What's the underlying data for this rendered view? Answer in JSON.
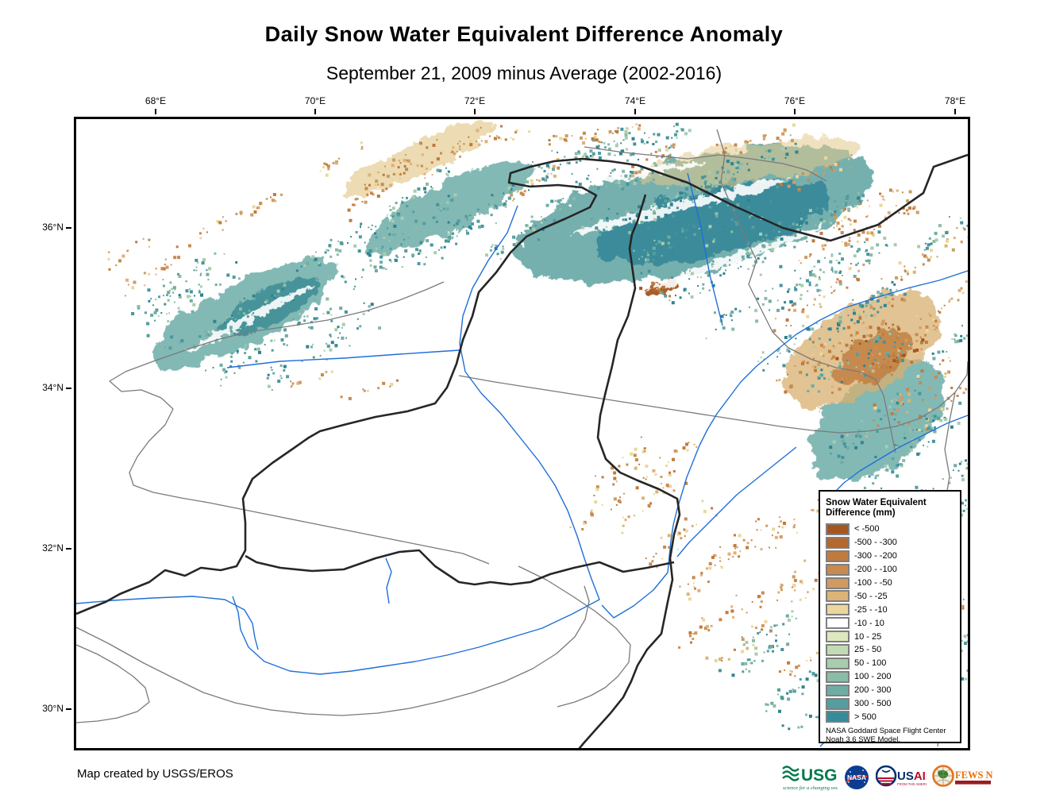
{
  "title": "Daily Snow Water Equivalent Difference Anomaly",
  "subtitle": "September 21, 2009 minus Average (2002-2016)",
  "map": {
    "x_tick_labels": [
      "68°E",
      "70°E",
      "72°E",
      "74°E",
      "76°E",
      "78°E"
    ],
    "y_tick_labels": [
      "36°N",
      "34°N",
      "32°N",
      "30°N"
    ]
  },
  "legend": {
    "title_line1": "Snow Water Equivalent",
    "title_line2": "Difference (mm)",
    "entries": [
      {
        "label": "< -500",
        "color": "#A5551E"
      },
      {
        "label": "-500 - -300",
        "color": "#B4682B"
      },
      {
        "label": "-300 - -200",
        "color": "#C07B3C"
      },
      {
        "label": "-200 - -100",
        "color": "#C88A4E"
      },
      {
        "label": "-100 - -50",
        "color": "#D19A62"
      },
      {
        "label": "-50 - -25",
        "color": "#DDB377"
      },
      {
        "label": "-25 - -10",
        "color": "#EBD79B"
      },
      {
        "label": "-10 - 10",
        "color": "#FFFFFF"
      },
      {
        "label": "10 - 25",
        "color": "#DCE9BE"
      },
      {
        "label": "25 - 50",
        "color": "#C2DBB4"
      },
      {
        "label": "50 - 100",
        "color": "#A8CDAC"
      },
      {
        "label": "100 - 200",
        "color": "#8BBCA7"
      },
      {
        "label": "200 - 300",
        "color": "#6FACA4"
      },
      {
        "label": "300 - 500",
        "color": "#569DA0"
      },
      {
        "label": "> 500",
        "color": "#348C9B"
      }
    ],
    "footnote_line1": "NASA Goddard Space Flight Center",
    "footnote_line2": "Noah 3.6 SWE Model."
  },
  "credit": "Map created by USGS/EROS",
  "logos": {
    "usgs": {
      "name": "USGS",
      "tagline": "science for a changing world",
      "color": "#00794C"
    },
    "nasa": {
      "name": "NASA",
      "color": "#0B3D91"
    },
    "usaid": {
      "name_us": "US",
      "name_aid": "AID",
      "tagline": "FROM THE AMERICAN PEOPLE",
      "blue": "#002F6C",
      "red": "#BA0C2F"
    },
    "fewsnet": {
      "name": "FEWS NET",
      "color": "#E8700A",
      "bar_color": "#9B1B1E"
    }
  }
}
